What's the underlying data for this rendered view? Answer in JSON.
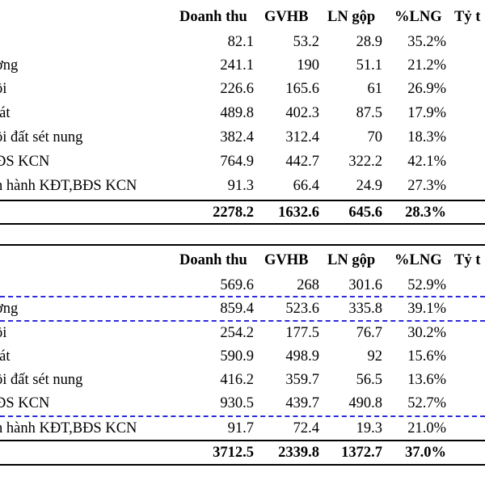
{
  "headers": [
    "Doanh thu",
    "GVHB",
    "LN gộp",
    "%LNG",
    "Tỷ t"
  ],
  "table_top": {
    "rows": [
      {
        "label": "",
        "doanh_thu": "82.1",
        "gvhb": "53.2",
        "ln_gop": "28.9",
        "pct_lng": "35.2%"
      },
      {
        "label": "ơng",
        "doanh_thu": "241.1",
        "gvhb": "190",
        "ln_gop": "51.1",
        "pct_lng": "21.2%"
      },
      {
        "label": "ồi",
        "doanh_thu": "226.6",
        "gvhb": "165.6",
        "ln_gop": "61",
        "pct_lng": "26.9%"
      },
      {
        "label": "lát",
        "doanh_thu": "489.8",
        "gvhb": "402.3",
        "ln_gop": "87.5",
        "pct_lng": "17.9%"
      },
      {
        "label": "ồi đất sét nung",
        "doanh_thu": "382.4",
        "gvhb": "312.4",
        "ln_gop": "70",
        "pct_lng": "18.3%"
      },
      {
        "label": "ĐS KCN",
        "doanh_thu": "764.9",
        "gvhb": "442.7",
        "ln_gop": "322.2",
        "pct_lng": "42.1%"
      },
      {
        "label": "n hành KĐT,BĐS KCN",
        "doanh_thu": "91.3",
        "gvhb": "66.4",
        "ln_gop": "24.9",
        "pct_lng": "27.3%"
      }
    ],
    "total": {
      "doanh_thu": "2278.2",
      "gvhb": "1632.6",
      "ln_gop": "645.6",
      "pct_lng": "28.3%"
    }
  },
  "table_bottom": {
    "rows": [
      {
        "label": "",
        "doanh_thu": "569.6",
        "gvhb": "268",
        "ln_gop": "301.6",
        "pct_lng": "52.9%"
      },
      {
        "label": "ơng",
        "doanh_thu": "859.4",
        "gvhb": "523.6",
        "ln_gop": "335.8",
        "pct_lng": "39.1%"
      },
      {
        "label": "ồi",
        "doanh_thu": "254.2",
        "gvhb": "177.5",
        "ln_gop": "76.7",
        "pct_lng": "30.2%"
      },
      {
        "label": "lát",
        "doanh_thu": "590.9",
        "gvhb": "498.9",
        "ln_gop": "92",
        "pct_lng": "15.6%"
      },
      {
        "label": "ồi đất sét nung",
        "doanh_thu": "416.2",
        "gvhb": "359.7",
        "ln_gop": "56.5",
        "pct_lng": "13.6%"
      },
      {
        "label": "ĐS KCN",
        "doanh_thu": "930.5",
        "gvhb": "439.7",
        "ln_gop": "490.8",
        "pct_lng": "52.7%"
      },
      {
        "label": "n hành KĐT,BĐS KCN",
        "doanh_thu": "91.7",
        "gvhb": "72.4",
        "ln_gop": "19.3",
        "pct_lng": "21.0%"
      }
    ],
    "total": {
      "doanh_thu": "3712.5",
      "gvhb": "2339.8",
      "ln_gop": "1372.7",
      "pct_lng": "37.0%"
    }
  },
  "colors": {
    "rule": "#000000",
    "highlight_dash": "#2b2bdc"
  }
}
